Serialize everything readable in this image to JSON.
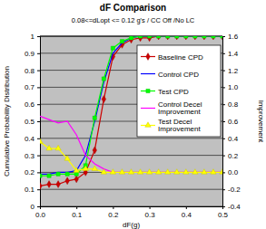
{
  "chart_data": {
    "type": "line",
    "title": "dF Comparison",
    "subtitle": "0.08<=dLopt <= 0.12 g's / CC Off /No LC",
    "x_label": "dF(g)",
    "y_label": "Cumulative Probability Distribution",
    "y2_label": "Improvement",
    "x": [
      0,
      0.025,
      0.05,
      0.075,
      0.1,
      0.125,
      0.15,
      0.175,
      0.2,
      0.225,
      0.25,
      0.275,
      0.3,
      0.325,
      0.35,
      0.375,
      0.4,
      0.425,
      0.45,
      0.475,
      0.5
    ],
    "xlim": [
      0,
      0.5
    ],
    "xticks": [
      {
        "value": 0,
        "label": "0.0"
      },
      0.1,
      0.2,
      0.3,
      0.4,
      0.5
    ],
    "ylim": [
      0,
      1
    ],
    "yticks": [
      0,
      0.1,
      0.2,
      0.3,
      0.4,
      0.5,
      0.6,
      0.7,
      0.8,
      0.9,
      1
    ],
    "y2lim": [
      -0.4,
      1.6
    ],
    "y2ticks": [
      -0.4,
      -0.2,
      {
        "value": 0,
        "label": "0.0"
      },
      0.2,
      0.4,
      0.6,
      0.8,
      {
        "value": 1,
        "label": "1.0"
      },
      1.2,
      1.4,
      1.6
    ],
    "grid": true,
    "legend": "right",
    "series": [
      {
        "name": "Baseline CPD",
        "color": "#cc0000",
        "marker": "diamond",
        "line_style": "solid",
        "values": [
          0.12,
          0.13,
          0.13,
          0.15,
          0.16,
          0.2,
          0.33,
          0.63,
          0.88,
          0.95,
          0.98,
          0.99,
          0.99,
          1,
          1,
          1,
          1,
          1,
          1,
          1,
          1
        ]
      },
      {
        "name": "Control CPD",
        "color": "#0000ff",
        "marker": "none",
        "line_style": "solid",
        "values": [
          0.19,
          0.19,
          0.2,
          0.2,
          0.21,
          0.3,
          0.5,
          0.73,
          0.9,
          0.96,
          0.99,
          1,
          1,
          1,
          1,
          1,
          1,
          1,
          1,
          1,
          1
        ]
      },
      {
        "name": "Test CPD",
        "color": "#00ff00",
        "marker": "square",
        "line_style": "solid",
        "values": [
          0.18,
          0.18,
          0.19,
          0.19,
          0.19,
          0.24,
          0.52,
          0.75,
          0.93,
          0.97,
          0.99,
          1,
          1,
          1,
          1,
          1,
          1,
          1,
          1,
          1,
          1
        ]
      },
      {
        "name": "Control Decel Improvement",
        "color": "#ff00ff",
        "marker": "none",
        "line_style": "solid",
        "axis": "y2",
        "values": [
          0.66,
          0.62,
          0.58,
          0.6,
          0.44,
          0.2,
          0.1,
          0.04,
          0,
          0,
          0,
          0,
          0,
          0,
          0,
          0,
          0,
          0,
          0,
          0,
          0
        ]
      },
      {
        "name": "Test Decel Improvement",
        "color": "#ffff00",
        "marker": "triangle",
        "line_style": "solid",
        "axis": "y2",
        "values": [
          0.36,
          0.28,
          0.28,
          0.16,
          0.02,
          0.04,
          0.04,
          0,
          0,
          0,
          0,
          0,
          0,
          0,
          0,
          0,
          0,
          0,
          0,
          0,
          0
        ]
      }
    ]
  }
}
